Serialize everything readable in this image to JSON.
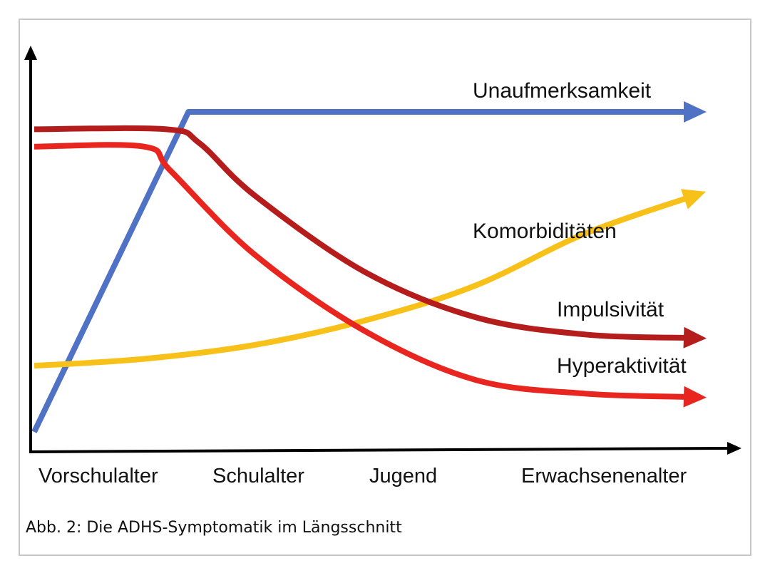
{
  "caption": "Abb. 2: Die ADHS-Symptomatik im Längsschnitt",
  "chart_data": {
    "type": "line",
    "x_categories": [
      "Vorschulalter",
      "Schulalter",
      "Jugend",
      "Erwachsenenalter"
    ],
    "xlim": [
      0,
      3
    ],
    "ylim": [
      0,
      1
    ],
    "grid": false,
    "legend": "none",
    "series": [
      {
        "name": "Unaufmerksamkeit",
        "color": "#4f72c4",
        "x": [
          0,
          0.7,
          3
        ],
        "y": [
          0.08,
          1.0,
          1.0
        ]
      },
      {
        "name": "Komorbiditäten",
        "color": "#f8c11a",
        "x": [
          0,
          0.5,
          1,
          1.5,
          2,
          2.5,
          3
        ],
        "y": [
          0.27,
          0.29,
          0.33,
          0.4,
          0.5,
          0.65,
          0.76
        ]
      },
      {
        "name": "Impulsivität",
        "color": "#b51d1d",
        "x": [
          0,
          0.6,
          0.75,
          1,
          1.5,
          2,
          2.5,
          3
        ],
        "y": [
          0.95,
          0.95,
          0.91,
          0.76,
          0.54,
          0.41,
          0.36,
          0.35
        ]
      },
      {
        "name": "Hyperaktivität",
        "color": "#e8261f",
        "x": [
          0,
          0.5,
          0.62,
          1,
          1.5,
          2,
          2.5,
          3
        ],
        "y": [
          0.9,
          0.9,
          0.83,
          0.59,
          0.37,
          0.23,
          0.19,
          0.18
        ]
      }
    ]
  }
}
